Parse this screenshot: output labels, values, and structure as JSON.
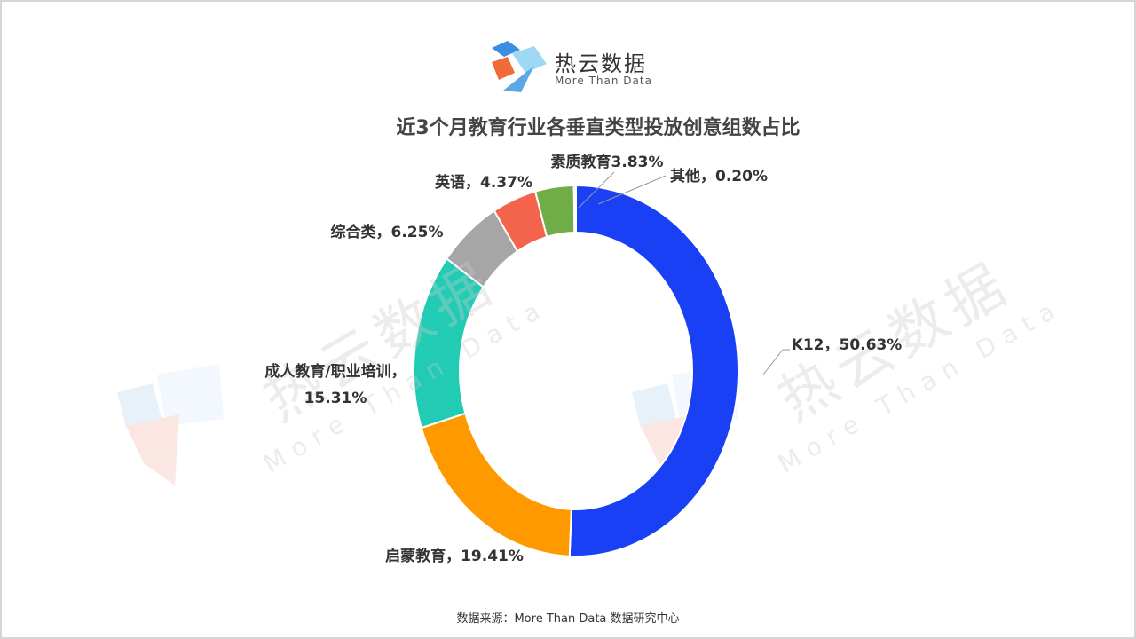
{
  "logo": {
    "name": "热云数据",
    "slogan": "More Than Data"
  },
  "watermark": {
    "name": "热云数据",
    "slogan": "More Than Data"
  },
  "chart_data": {
    "type": "donut",
    "title": "近3个月教育行业各垂直类型投放创意组数占比",
    "values": [
      50.63,
      19.41,
      15.31,
      6.25,
      4.37,
      3.83,
      0.2
    ],
    "value_labels": [
      "K12，50.63%",
      "启蒙教育，19.41%",
      "成人教育/职业培训，\n15.31%",
      "综合类，6.25%",
      "英语，4.37%",
      "素质教育3.83%",
      "其他，0.20%"
    ],
    "colors": [
      "#1a40f5",
      "#ff9900",
      "#22ccb4",
      "#a6a6a6",
      "#f4644c",
      "#70ad47",
      "#d9d9d9"
    ]
  },
  "footer": "数据来源：More Than Data 数据研究中心"
}
